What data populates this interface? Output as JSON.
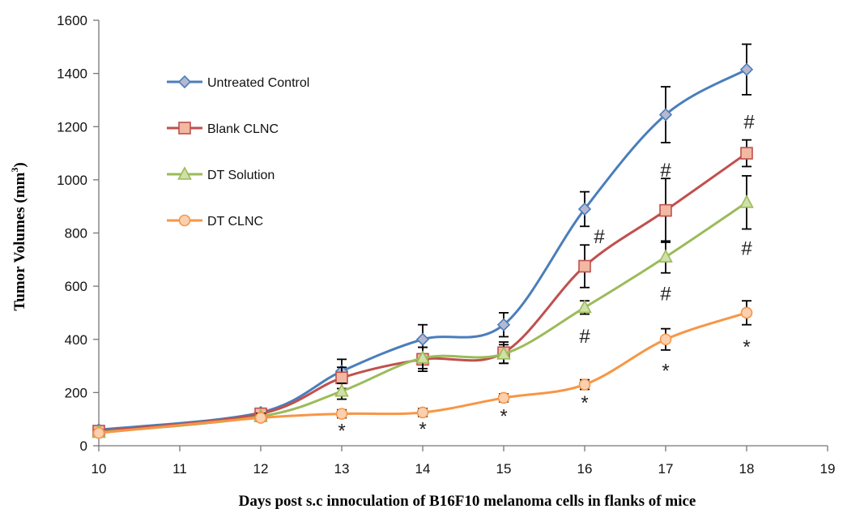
{
  "chart_data": {
    "type": "line",
    "xlabel": "Days post s.c innoculation of B16F10 melanoma cells in flanks of mice",
    "ylabel_main": "Tumor Volumes (mm",
    "ylabel_sup": "3",
    "ylabel_close": ")",
    "xlim": [
      10,
      19
    ],
    "ylim": [
      0,
      1600
    ],
    "xticks": [
      10,
      11,
      12,
      13,
      14,
      15,
      16,
      17,
      18,
      19
    ],
    "yticks": [
      0,
      200,
      400,
      600,
      800,
      1000,
      1200,
      1400,
      1600
    ],
    "grid": false,
    "legend_position": "top-left",
    "series": [
      {
        "name": "Untreated Control",
        "color": "#4a7ebb",
        "marker": "diamond",
        "marker_color": "#b7b7cf",
        "x": [
          10,
          12,
          13,
          14,
          15,
          16,
          17,
          18
        ],
        "y": [
          60,
          125,
          280,
          400,
          455,
          890,
          1245,
          1415
        ],
        "err": [
          10,
          15,
          45,
          55,
          45,
          65,
          105,
          95
        ]
      },
      {
        "name": "Blank CLNC",
        "color": "#c0504d",
        "marker": "square",
        "marker_color": "#f2b8a2",
        "x": [
          10,
          12,
          13,
          14,
          15,
          16,
          17,
          18
        ],
        "y": [
          55,
          120,
          255,
          325,
          350,
          675,
          885,
          1100
        ],
        "err": [
          10,
          15,
          40,
          45,
          40,
          80,
          120,
          50
        ]
      },
      {
        "name": "DT Solution",
        "color": "#9bbb59",
        "marker": "triangle",
        "marker_color": "#cfe0a8",
        "x": [
          10,
          12,
          13,
          14,
          15,
          16,
          17,
          18
        ],
        "y": [
          50,
          110,
          205,
          330,
          345,
          520,
          710,
          915
        ],
        "err": [
          10,
          12,
          30,
          40,
          35,
          25,
          60,
          100
        ]
      },
      {
        "name": "DT CLNC",
        "color": "#f79646",
        "marker": "circle",
        "marker_color": "#fbd0b0",
        "x": [
          10,
          12,
          13,
          14,
          15,
          16,
          17,
          18
        ],
        "y": [
          48,
          105,
          120,
          125,
          180,
          230,
          400,
          500
        ],
        "err": [
          8,
          12,
          15,
          15,
          15,
          18,
          40,
          45
        ]
      }
    ],
    "annotations": [
      {
        "text": "*",
        "x": 13,
        "y": 60
      },
      {
        "text": "*",
        "x": 14,
        "y": 65
      },
      {
        "text": "*",
        "x": 15,
        "y": 115
      },
      {
        "text": "*",
        "x": 16,
        "y": 165
      },
      {
        "text": "*",
        "x": 17,
        "y": 285
      },
      {
        "text": "*",
        "x": 18,
        "y": 375
      },
      {
        "text": "#",
        "x": 16.18,
        "y": 790
      },
      {
        "text": "#",
        "x": 16,
        "y": 415
      },
      {
        "text": "#",
        "x": 17,
        "y": 1040
      },
      {
        "text": "#",
        "x": 17,
        "y": 575
      },
      {
        "text": "#",
        "x": 18.03,
        "y": 1220
      },
      {
        "text": "#",
        "x": 18,
        "y": 745
      }
    ]
  }
}
